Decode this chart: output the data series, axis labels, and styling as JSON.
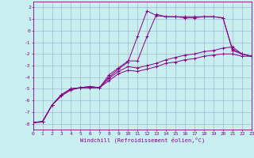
{
  "xlabel": "Windchill (Refroidissement éolien,°C)",
  "background_color": "#c8eef0",
  "line_color": "#880088",
  "grid_color": "#99aacc",
  "xlim": [
    0,
    23
  ],
  "ylim": [
    -8.5,
    2.5
  ],
  "xticks": [
    0,
    1,
    2,
    3,
    4,
    5,
    6,
    7,
    8,
    9,
    10,
    11,
    12,
    13,
    14,
    15,
    16,
    17,
    18,
    19,
    20,
    21,
    22,
    23
  ],
  "yticks": [
    -8,
    -7,
    -6,
    -5,
    -4,
    -3,
    -2,
    -1,
    0,
    1,
    2
  ],
  "line1_x": [
    0,
    1,
    2,
    3,
    4,
    5,
    6,
    7,
    8,
    9,
    10,
    11,
    12,
    13,
    14,
    15,
    16,
    17,
    18,
    19,
    20,
    21,
    22,
    23
  ],
  "line1_y": [
    -7.9,
    -7.8,
    -6.4,
    -5.6,
    -5.1,
    -4.9,
    -4.8,
    -4.9,
    -4.0,
    -3.3,
    -2.7,
    -0.5,
    1.7,
    1.3,
    1.2,
    1.2,
    1.2,
    1.2,
    1.2,
    1.2,
    1.1,
    -1.7,
    -2.0,
    -2.2
  ],
  "line2_x": [
    0,
    1,
    2,
    3,
    4,
    5,
    6,
    7,
    8,
    9,
    10,
    11,
    12,
    13,
    14,
    15,
    16,
    17,
    18,
    19,
    20,
    21,
    22,
    23
  ],
  "line2_y": [
    -7.9,
    -7.8,
    -6.4,
    -5.5,
    -5.0,
    -4.9,
    -4.8,
    -4.9,
    -3.8,
    -3.2,
    -2.6,
    -2.6,
    -0.5,
    1.4,
    1.2,
    1.2,
    1.1,
    1.1,
    1.2,
    1.2,
    1.1,
    -1.6,
    -2.0,
    -2.2
  ],
  "line3_x": [
    0,
    1,
    2,
    3,
    4,
    5,
    6,
    7,
    8,
    9,
    10,
    11,
    12,
    13,
    14,
    15,
    16,
    17,
    18,
    19,
    20,
    21,
    22,
    23
  ],
  "line3_y": [
    -7.9,
    -7.85,
    -6.4,
    -5.5,
    -5.0,
    -4.9,
    -4.9,
    -4.9,
    -4.1,
    -3.5,
    -3.1,
    -3.2,
    -3.0,
    -2.8,
    -2.5,
    -2.3,
    -2.1,
    -2.0,
    -1.8,
    -1.7,
    -1.5,
    -1.4,
    -2.0,
    -2.2
  ],
  "line4_x": [
    0,
    1,
    2,
    3,
    4,
    5,
    6,
    7,
    8,
    9,
    10,
    11,
    12,
    13,
    14,
    15,
    16,
    17,
    18,
    19,
    20,
    21,
    22,
    23
  ],
  "line4_y": [
    -7.9,
    -7.85,
    -6.4,
    -5.5,
    -5.0,
    -4.9,
    -4.9,
    -4.9,
    -4.3,
    -3.7,
    -3.4,
    -3.5,
    -3.3,
    -3.1,
    -2.8,
    -2.7,
    -2.5,
    -2.4,
    -2.2,
    -2.1,
    -2.0,
    -2.0,
    -2.2,
    -2.2
  ]
}
